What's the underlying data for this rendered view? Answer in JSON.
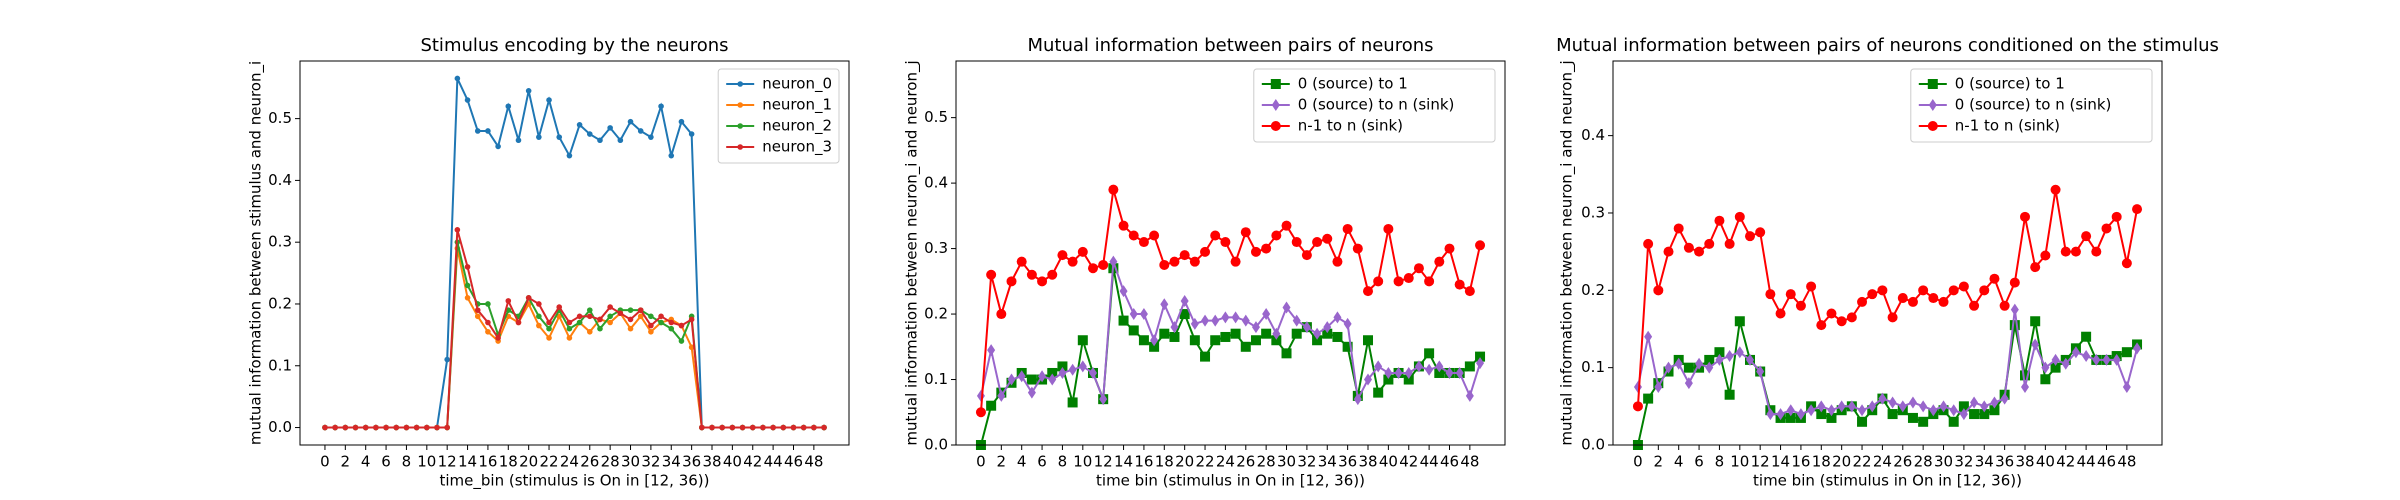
{
  "chart_data": [
    {
      "type": "line",
      "title": "Stimulus encoding by the neurons",
      "xlabel": "time_bin (stimulus is On in [12, 36))",
      "ylabel": "mutual information between stimulus and neuron_i",
      "x": [
        0,
        1,
        2,
        3,
        4,
        5,
        6,
        7,
        8,
        9,
        10,
        11,
        12,
        13,
        14,
        15,
        16,
        17,
        18,
        19,
        20,
        21,
        22,
        23,
        24,
        25,
        26,
        27,
        28,
        29,
        30,
        31,
        32,
        33,
        34,
        35,
        36,
        37,
        38,
        39,
        40,
        41,
        42,
        43,
        44,
        45,
        46,
        47,
        48,
        49
      ],
      "xlim": [
        -2.45,
        51.45
      ],
      "xticks": [
        0,
        2,
        4,
        6,
        8,
        10,
        12,
        14,
        16,
        18,
        20,
        22,
        24,
        26,
        28,
        30,
        32,
        34,
        36,
        38,
        40,
        42,
        44,
        46,
        48
      ],
      "ylim": [
        -0.02825,
        0.59325
      ],
      "yticks": [
        {
          "value": 0,
          "label": "0.0"
        },
        0.1,
        0.2,
        0.3,
        0.4,
        0.5
      ],
      "legend": "upper right",
      "series": [
        {
          "name": "neuron_0",
          "color": "#1f77b4",
          "marker": "o",
          "values": [
            0,
            0,
            0,
            0,
            0,
            0,
            0,
            0,
            0,
            0,
            0,
            0,
            0.11,
            0.565,
            0.53,
            0.48,
            0.48,
            0.455,
            0.52,
            0.465,
            0.545,
            0.47,
            0.53,
            0.47,
            0.44,
            0.49,
            0.475,
            0.465,
            0.485,
            0.465,
            0.495,
            0.48,
            0.47,
            0.52,
            0.44,
            0.495,
            0.475,
            0,
            0,
            0,
            0,
            0,
            0,
            0,
            0,
            0,
            0,
            0,
            0,
            0
          ]
        },
        {
          "name": "neuron_1",
          "color": "#ff7f0e",
          "marker": "o",
          "values": [
            0,
            0,
            0,
            0,
            0,
            0,
            0,
            0,
            0,
            0,
            0,
            0,
            0,
            0.29,
            0.21,
            0.18,
            0.155,
            0.14,
            0.18,
            0.17,
            0.2,
            0.165,
            0.145,
            0.18,
            0.145,
            0.17,
            0.155,
            0.175,
            0.17,
            0.185,
            0.16,
            0.18,
            0.155,
            0.17,
            0.175,
            0.165,
            0.13,
            0,
            0,
            0,
            0,
            0,
            0,
            0,
            0,
            0,
            0,
            0,
            0,
            0
          ]
        },
        {
          "name": "neuron_2",
          "color": "#2ca02c",
          "marker": "o",
          "values": [
            0,
            0,
            0,
            0,
            0,
            0,
            0,
            0,
            0,
            0,
            0,
            0,
            0,
            0.3,
            0.23,
            0.2,
            0.2,
            0.15,
            0.19,
            0.18,
            0.21,
            0.18,
            0.16,
            0.19,
            0.16,
            0.17,
            0.19,
            0.16,
            0.18,
            0.19,
            0.19,
            0.19,
            0.18,
            0.17,
            0.16,
            0.14,
            0.18,
            0,
            0,
            0,
            0,
            0,
            0,
            0,
            0,
            0,
            0,
            0,
            0,
            0
          ]
        },
        {
          "name": "neuron_3",
          "color": "#d62728",
          "marker": "o",
          "values": [
            0,
            0,
            0,
            0,
            0,
            0,
            0,
            0,
            0,
            0,
            0,
            0,
            0,
            0.32,
            0.26,
            0.19,
            0.17,
            0.145,
            0.205,
            0.17,
            0.21,
            0.2,
            0.17,
            0.195,
            0.17,
            0.18,
            0.18,
            0.175,
            0.195,
            0.185,
            0.175,
            0.19,
            0.165,
            0.18,
            0.17,
            0.165,
            0.175,
            0,
            0,
            0,
            0,
            0,
            0,
            0,
            0,
            0,
            0,
            0,
            0,
            0
          ]
        }
      ]
    },
    {
      "type": "line",
      "title": "Mutual information between pairs of neurons",
      "xlabel": "time bin (stimulus in On in [12, 36))",
      "ylabel": "mutual information between neuron_i and neuron_j",
      "x": [
        0,
        1,
        2,
        3,
        4,
        5,
        6,
        7,
        8,
        9,
        10,
        11,
        12,
        13,
        14,
        15,
        16,
        17,
        18,
        19,
        20,
        21,
        22,
        23,
        24,
        25,
        26,
        27,
        28,
        29,
        30,
        31,
        32,
        33,
        34,
        35,
        36,
        37,
        38,
        39,
        40,
        41,
        42,
        43,
        44,
        45,
        46,
        47,
        48,
        49
      ],
      "xlim": [
        -2.45,
        51.45
      ],
      "xticks": [
        0,
        2,
        4,
        6,
        8,
        10,
        12,
        14,
        16,
        18,
        20,
        22,
        24,
        26,
        28,
        30,
        32,
        34,
        36,
        38,
        40,
        42,
        44,
        46,
        48
      ],
      "ylim": [
        0,
        0.5865
      ],
      "yticks": [
        {
          "value": 0,
          "label": "0.0"
        },
        0.1,
        0.2,
        0.3,
        0.4,
        0.5
      ],
      "legend": "upper right",
      "series": [
        {
          "name": "0 (source) to 1",
          "color": "#008000",
          "marker": "s",
          "values": [
            0,
            0.06,
            0.08,
            0.095,
            0.11,
            0.1,
            0.1,
            0.11,
            0.12,
            0.065,
            0.16,
            0.11,
            0.07,
            0.27,
            0.19,
            0.175,
            0.16,
            0.15,
            0.17,
            0.165,
            0.2,
            0.16,
            0.135,
            0.16,
            0.165,
            0.17,
            0.15,
            0.16,
            0.17,
            0.16,
            0.14,
            0.17,
            0.18,
            0.16,
            0.17,
            0.165,
            0.15,
            0.075,
            0.16,
            0.08,
            0.1,
            0.11,
            0.1,
            0.12,
            0.14,
            0.11,
            0.11,
            0.11,
            0.12,
            0.135
          ]
        },
        {
          "name": "0 (source) to n (sink)",
          "color": "#9966cc",
          "marker": "d",
          "values": [
            0.075,
            0.145,
            0.075,
            0.1,
            0.105,
            0.08,
            0.105,
            0.1,
            0.11,
            0.115,
            0.12,
            0.11,
            0.07,
            0.28,
            0.235,
            0.2,
            0.2,
            0.16,
            0.215,
            0.18,
            0.22,
            0.185,
            0.19,
            0.19,
            0.195,
            0.195,
            0.19,
            0.18,
            0.2,
            0.17,
            0.21,
            0.19,
            0.18,
            0.17,
            0.18,
            0.195,
            0.185,
            0.07,
            0.1,
            0.12,
            0.11,
            0.11,
            0.11,
            0.12,
            0.115,
            0.12,
            0.11,
            0.11,
            0.075,
            0.125
          ]
        },
        {
          "name": "n-1 to n (sink)",
          "color": "#ff0000",
          "marker": "o",
          "values": [
            0.05,
            0.26,
            0.2,
            0.25,
            0.28,
            0.26,
            0.25,
            0.26,
            0.29,
            0.28,
            0.295,
            0.27,
            0.275,
            0.39,
            0.335,
            0.32,
            0.31,
            0.32,
            0.275,
            0.28,
            0.29,
            0.28,
            0.295,
            0.32,
            0.31,
            0.28,
            0.325,
            0.295,
            0.3,
            0.32,
            0.335,
            0.31,
            0.29,
            0.31,
            0.315,
            0.28,
            0.33,
            0.3,
            0.235,
            0.25,
            0.33,
            0.25,
            0.255,
            0.27,
            0.25,
            0.28,
            0.3,
            0.245,
            0.235,
            0.305
          ]
        }
      ]
    },
    {
      "type": "line",
      "title": "Mutual information between pairs of neurons conditioned on the stimulus",
      "xlabel": "time bin (stimulus in On in [12, 36))",
      "ylabel": "mutual information between neuron_i and neuron_j",
      "x": [
        0,
        1,
        2,
        3,
        4,
        5,
        6,
        7,
        8,
        9,
        10,
        11,
        12,
        13,
        14,
        15,
        16,
        17,
        18,
        19,
        20,
        21,
        22,
        23,
        24,
        25,
        26,
        27,
        28,
        29,
        30,
        31,
        32,
        33,
        34,
        35,
        36,
        37,
        38,
        39,
        40,
        41,
        42,
        43,
        44,
        45,
        46,
        47,
        48,
        49
      ],
      "xlim": [
        -2.45,
        51.45
      ],
      "xticks": [
        0,
        2,
        4,
        6,
        8,
        10,
        12,
        14,
        16,
        18,
        20,
        22,
        24,
        26,
        28,
        30,
        32,
        34,
        36,
        38,
        40,
        42,
        44,
        46,
        48
      ],
      "ylim": [
        0,
        0.4965
      ],
      "yticks": [
        {
          "value": 0,
          "label": "0.0"
        },
        0.1,
        0.2,
        0.3,
        0.4
      ],
      "legend": "upper right",
      "series": [
        {
          "name": "0 (source) to 1",
          "color": "#008000",
          "marker": "s",
          "values": [
            0,
            0.06,
            0.08,
            0.095,
            0.11,
            0.1,
            0.1,
            0.11,
            0.12,
            0.065,
            0.16,
            0.11,
            0.095,
            0.045,
            0.035,
            0.035,
            0.035,
            0.05,
            0.04,
            0.035,
            0.045,
            0.05,
            0.03,
            0.045,
            0.06,
            0.04,
            0.045,
            0.035,
            0.03,
            0.04,
            0.045,
            0.03,
            0.05,
            0.04,
            0.04,
            0.045,
            0.065,
            0.155,
            0.09,
            0.16,
            0.085,
            0.1,
            0.11,
            0.125,
            0.14,
            0.11,
            0.11,
            0.115,
            0.12,
            0.13
          ]
        },
        {
          "name": "0 (source) to n (sink)",
          "color": "#9966cc",
          "marker": "d",
          "values": [
            0.075,
            0.14,
            0.075,
            0.1,
            0.105,
            0.08,
            0.105,
            0.1,
            0.11,
            0.115,
            0.12,
            0.11,
            0.095,
            0.04,
            0.04,
            0.045,
            0.04,
            0.045,
            0.05,
            0.045,
            0.05,
            0.05,
            0.045,
            0.05,
            0.06,
            0.055,
            0.05,
            0.055,
            0.05,
            0.045,
            0.05,
            0.045,
            0.04,
            0.055,
            0.05,
            0.055,
            0.06,
            0.175,
            0.075,
            0.13,
            0.1,
            0.11,
            0.105,
            0.12,
            0.115,
            0.11,
            0.11,
            0.11,
            0.075,
            0.125
          ]
        },
        {
          "name": "n-1 to n (sink)",
          "color": "#ff0000",
          "marker": "o",
          "values": [
            0.05,
            0.26,
            0.2,
            0.25,
            0.28,
            0.255,
            0.25,
            0.26,
            0.29,
            0.26,
            0.295,
            0.27,
            0.275,
            0.195,
            0.17,
            0.195,
            0.18,
            0.205,
            0.155,
            0.17,
            0.16,
            0.165,
            0.185,
            0.195,
            0.2,
            0.165,
            0.19,
            0.185,
            0.2,
            0.19,
            0.185,
            0.2,
            0.205,
            0.18,
            0.2,
            0.215,
            0.18,
            0.21,
            0.295,
            0.23,
            0.245,
            0.33,
            0.25,
            0.25,
            0.27,
            0.25,
            0.28,
            0.295,
            0.235,
            0.305
          ]
        }
      ]
    }
  ]
}
